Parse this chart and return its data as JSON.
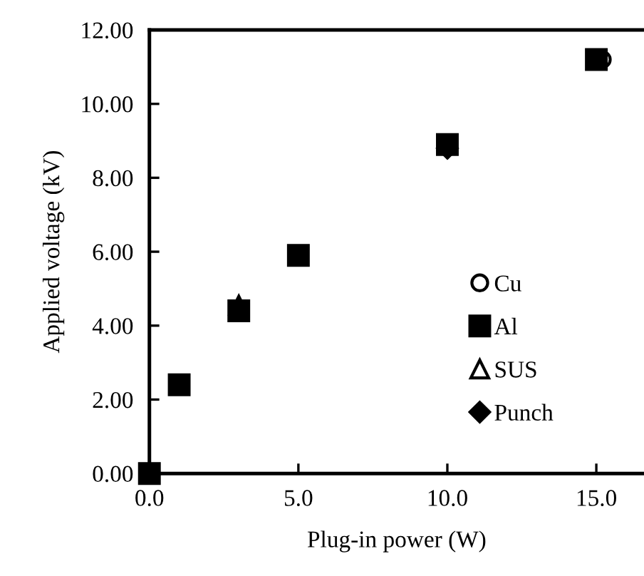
{
  "chart_data": {
    "type": "scatter",
    "xlabel": "Plug-in power (W)",
    "ylabel": "Applied voltage (kV)",
    "xlim": [
      0,
      16.6
    ],
    "xticks": [
      {
        "value": 0,
        "label": "0.0"
      },
      {
        "value": 5,
        "label": "5.0"
      },
      {
        "value": 10,
        "label": "10.0"
      },
      {
        "value": 15,
        "label": "15.0"
      }
    ],
    "ylim": [
      0,
      12
    ],
    "yticks": [
      {
        "value": 0,
        "label": "0.00"
      },
      {
        "value": 2,
        "label": "2.00"
      },
      {
        "value": 4,
        "label": "4.00"
      },
      {
        "value": 6,
        "label": "6.00"
      },
      {
        "value": 8,
        "label": "8.00"
      },
      {
        "value": 10,
        "label": "10.00"
      },
      {
        "value": 12,
        "label": "12.00"
      }
    ],
    "grid": false,
    "legend": "bottom right",
    "series": [
      {
        "name": "Cu",
        "color": "#000000",
        "marker": "circle",
        "x": [
          15.2
        ],
        "values": [
          11.2
        ]
      },
      {
        "name": "Al",
        "color": "#000000",
        "marker": "square",
        "x": [
          0,
          1,
          3,
          5,
          10,
          15
        ],
        "values": [
          0,
          2.4,
          4.4,
          5.9,
          8.9,
          11.2
        ]
      },
      {
        "name": "SUS",
        "color": "#000000",
        "marker": "triangle",
        "x": [
          3
        ],
        "values": [
          4.55
        ]
      },
      {
        "name": "Punch",
        "color": "#000000",
        "marker": "diamond",
        "x": [
          10
        ],
        "values": [
          8.8
        ]
      }
    ]
  }
}
